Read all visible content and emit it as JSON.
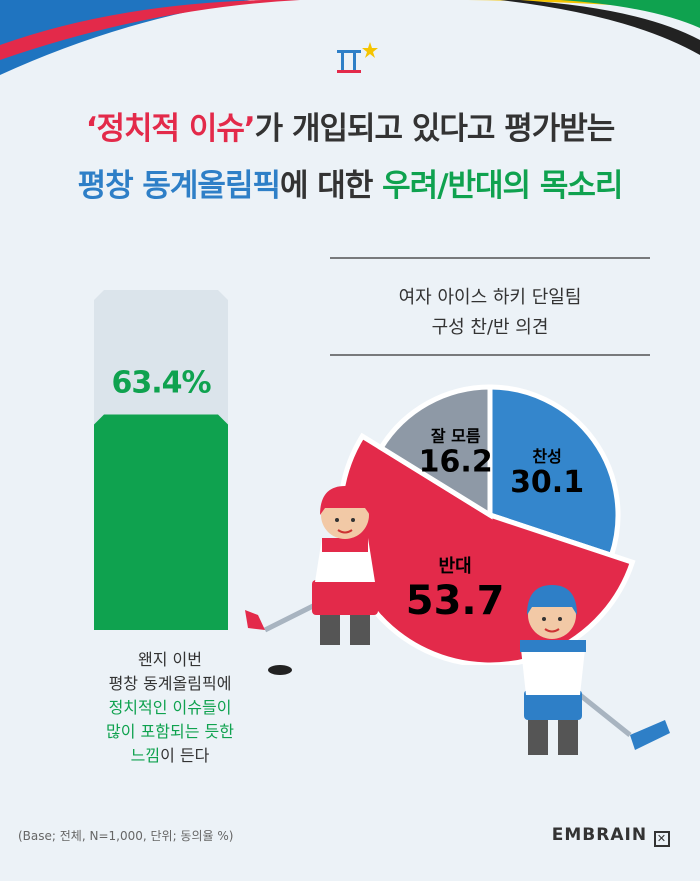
{
  "header": {
    "title_line1_red": "‘정치적 이슈’",
    "title_line1_rest": "가 개입되고 있다고 평가받는",
    "title_line2_blue": "평창 동계올림픽",
    "title_line2_mid": "에 대한 ",
    "title_line2_green": "우려/반대의 목소리"
  },
  "left_caption": {
    "line1": "왠지 이번",
    "line2": "평창 동계올림픽에",
    "line3_green": "정치적인 이슈들이",
    "line4_green": "많이 포함되는 듯한",
    "line5_green": "느낌",
    "line5_rest": "이 든다"
  },
  "footer": {
    "base_note": "(Base; 전체, N=1,000, 단위; 동의율 %)",
    "brand": "EMBRAIN"
  },
  "colors": {
    "green": "#0fa24f",
    "blue": "#3486cc",
    "red": "#e32a4a",
    "gray": "#8e99a6"
  },
  "chart_data": [
    {
      "type": "bar",
      "categories": [
        ""
      ],
      "values": [
        63.4
      ],
      "value_label": "63.4%",
      "ylim": [
        0,
        100
      ]
    },
    {
      "type": "pie",
      "title_line1": "여자 아이스 하키 단일팀",
      "title_line2": "구성 찬/반 의견",
      "slices": [
        {
          "label": "찬성",
          "value": 30.1,
          "value_label": "30.1",
          "color": "#3486cc"
        },
        {
          "label": "반대",
          "value": 53.7,
          "value_label": "53.7",
          "color": "#e32a4a"
        },
        {
          "label": "잘 모름",
          "value": 16.2,
          "value_label": "16.2",
          "color": "#8e99a6"
        }
      ]
    }
  ]
}
